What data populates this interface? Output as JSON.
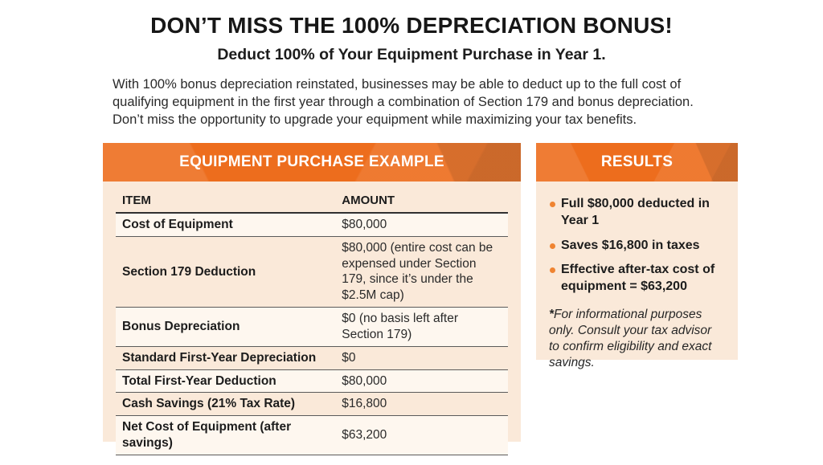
{
  "page": {
    "title": "DON’T MISS THE 100% DEPRECIATION BONUS!",
    "subtitle": "Deduct 100% of Your Equipment Purchase in Year 1.",
    "intro": "With 100% bonus depreciation reinstated, businesses may be able to deduct up to the full cost of qualifying equipment in the first year through a combination of Section 179 and bonus depreciation. Don’t miss the opportunity to upgrade your equipment while maximizing your tax benefits."
  },
  "example_panel": {
    "header": "EQUIPMENT PURCHASE EXAMPLE",
    "table": {
      "columns": [
        "ITEM",
        "AMOUNT"
      ],
      "rows": [
        {
          "item": "Cost of Equipment",
          "amount": "$80,000"
        },
        {
          "item": "Section 179 Deduction",
          "amount": "$80,000 (entire cost can be expensed under Section 179, since it’s under the $2.5M cap)"
        },
        {
          "item": "Bonus Depreciation",
          "amount": "$0 (no basis left after Section 179)"
        },
        {
          "item": "Standard First-Year Depreciation",
          "amount": "$0"
        },
        {
          "item": "Total First-Year Deduction",
          "amount": "$80,000"
        },
        {
          "item": "Cash Savings (21% Tax Rate)",
          "amount": "$16,800"
        },
        {
          "item": "Net Cost of Equipment (after savings)",
          "amount": "$63,200"
        }
      ]
    }
  },
  "results_panel": {
    "header": "RESULTS",
    "bullets": [
      "Full $80,000 deducted in Year 1",
      "Saves $16,800 in taxes",
      "Effective after-tax cost of equipment = $63,200"
    ],
    "disclaimer_star": "*",
    "disclaimer": "For informational purposes only. Consult your tax advisor to confirm eligibility and exact savings."
  },
  "colors": {
    "orange": "#ED6D1D",
    "orange_light": "#F58634",
    "orange_dark": "#DE5F10",
    "panel_bg": "#FAE9D9",
    "row_cream": "#FEF7EF",
    "text_dark": "#212121",
    "bullet": "#EF8432"
  }
}
